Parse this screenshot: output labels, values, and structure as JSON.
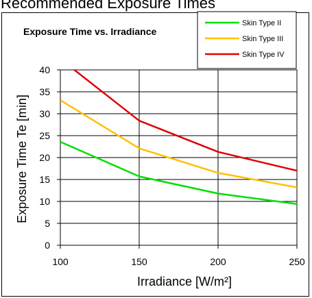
{
  "page": {
    "title": "Recommended Exposure Times"
  },
  "chart_data": {
    "type": "line",
    "title": "Exposure Time vs. Irradiance",
    "xlabel": "Irradiance [W/m²]",
    "ylabel": "Exposure Time Te [min]",
    "x": [
      100,
      150,
      200,
      250
    ],
    "xlim": [
      100,
      250
    ],
    "ylim": [
      0,
      40
    ],
    "xticks": [
      "100",
      "150",
      "200",
      "250"
    ],
    "yticks": [
      "0",
      "5",
      "10",
      "15",
      "20",
      "25",
      "30",
      "35",
      "40"
    ],
    "grid": true,
    "legend_position": "top-right",
    "series": [
      {
        "name": "Skin Type II",
        "color": "#00e000",
        "values": [
          23.6,
          15.7,
          11.8,
          9.4
        ]
      },
      {
        "name": "Skin Type III",
        "color": "#ffc000",
        "values": [
          33.1,
          22.1,
          16.5,
          13.2
        ]
      },
      {
        "name": "Skin Type IV",
        "color": "#e00000",
        "values": [
          42.5,
          28.4,
          21.3,
          17.0
        ]
      }
    ]
  }
}
